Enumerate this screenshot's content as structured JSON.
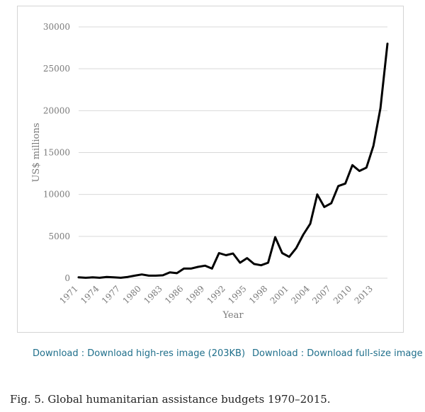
{
  "chart_data": {
    "type": "line",
    "title": "",
    "xlabel": "Year",
    "ylabel": "US$ millions",
    "ylim": [
      0,
      30000
    ],
    "yticks": [
      0,
      5000,
      10000,
      15000,
      20000,
      25000,
      30000
    ],
    "ytick_labels": [
      "0",
      "5000",
      "10000",
      "15000",
      "20000",
      "25000",
      "30000"
    ],
    "xticks": [
      1971,
      1974,
      1977,
      1980,
      1983,
      1986,
      1989,
      1992,
      1995,
      1998,
      2001,
      2004,
      2007,
      2010,
      2013
    ],
    "xtick_labels": [
      "1971",
      "1974",
      "1977",
      "1980",
      "1983",
      "1986",
      "1989",
      "1992",
      "1995",
      "1998",
      "2001",
      "2004",
      "2007",
      "2010",
      "2013"
    ],
    "xlim": [
      1971,
      2015
    ],
    "grid": true,
    "series": [
      {
        "name": "Global humanitarian assistance",
        "color": "#000000",
        "x": [
          1971,
          1972,
          1973,
          1974,
          1975,
          1976,
          1977,
          1978,
          1979,
          1980,
          1981,
          1982,
          1983,
          1984,
          1985,
          1986,
          1987,
          1988,
          1989,
          1990,
          1991,
          1992,
          1993,
          1994,
          1995,
          1996,
          1997,
          1998,
          1999,
          2000,
          2001,
          2002,
          2003,
          2004,
          2005,
          2006,
          2007,
          2008,
          2009,
          2010,
          2011,
          2012,
          2013,
          2014,
          2015
        ],
        "values": [
          100,
          50,
          100,
          50,
          150,
          100,
          50,
          150,
          300,
          450,
          300,
          300,
          350,
          700,
          600,
          1150,
          1150,
          1350,
          1500,
          1150,
          3000,
          2750,
          2950,
          1850,
          2400,
          1700,
          1550,
          1850,
          4900,
          3000,
          2550,
          3600,
          5200,
          6500,
          10000,
          8500,
          8950,
          11000,
          11300,
          13500,
          12800,
          13200,
          15800,
          20300,
          28000
        ]
      }
    ]
  },
  "downloads": {
    "high_res": "Download : Download high-res image (203KB)",
    "full_size": "Download : Download full-size image"
  },
  "caption": "Fig. 5. Global humanitarian assistance budgets 1970–2015."
}
